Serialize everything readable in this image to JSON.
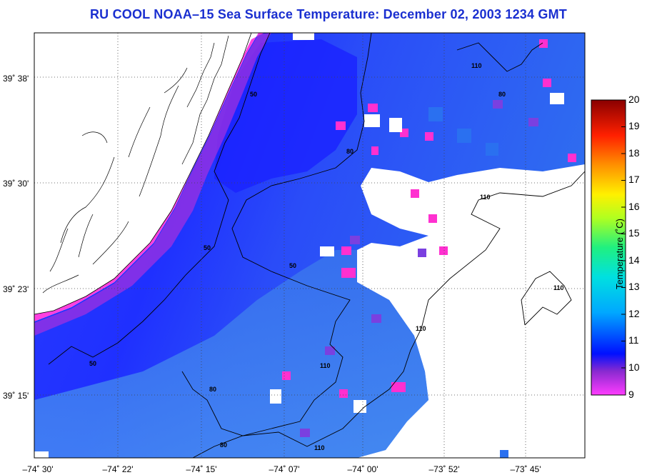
{
  "title": "RU COOL  NOAA–15  Sea Surface Temperature:  December 02, 2003 1234 GMT",
  "latitude_labels": [
    "39˚ 38'",
    "39˚ 30'",
    "39˚ 23'",
    "39˚ 15'"
  ],
  "longitude_labels": [
    "–74˚ 30'",
    "–74˚ 22'",
    "–74˚ 15'",
    "–74˚ 07'",
    "–74˚ 00'",
    "–73˚ 52'",
    "–73˚ 45'"
  ],
  "colorbar": {
    "title": "Temperature (˚C)",
    "ticks": [
      "20",
      "19",
      "18",
      "17",
      "16",
      "15",
      "14",
      "13",
      "12",
      "11",
      "10",
      "9"
    ],
    "min": 9,
    "max": 20
  },
  "contour_labels": [
    "50",
    "80",
    "110"
  ],
  "colors": {
    "title": "#1a2fd0",
    "land": "#ffffff",
    "coast_warm": "#ff40d0",
    "offshore": "#1a2fff",
    "shelf": "#4a88f0"
  }
}
